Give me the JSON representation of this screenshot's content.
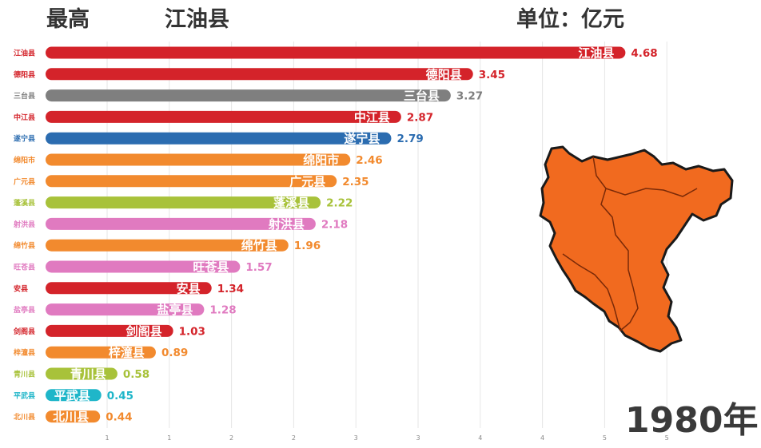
{
  "header": {
    "left_label": "最高",
    "leader": "江油县",
    "unit": "单位：亿元"
  },
  "year_label": "1980年",
  "map": {
    "fill_color": "#f16a1f",
    "stroke_color": "#1a1a1a",
    "icon": "county-map"
  },
  "chart_data": {
    "type": "bar",
    "orientation": "horizontal",
    "categories": [
      "江油县",
      "德阳县",
      "三台县",
      "中江县",
      "遂宁县",
      "绵阳市",
      "广元县",
      "蓬溪县",
      "射洪县",
      "绵竹县",
      "旺苍县",
      "安县",
      "盐亭县",
      "剑阁县",
      "梓潼县",
      "青川县",
      "平武县",
      "北川县"
    ],
    "values": [
      4.68,
      3.45,
      3.27,
      2.87,
      2.79,
      2.46,
      2.35,
      2.22,
      2.18,
      1.96,
      1.57,
      1.34,
      1.28,
      1.03,
      0.89,
      0.58,
      0.45,
      0.44
    ],
    "value_labels": [
      "4.68",
      "3.45",
      "3.27",
      "2.87",
      "2.79",
      "2.46",
      "2.35",
      "2.22",
      "2.18",
      "1.96",
      "1.57",
      "1.34",
      "1.28",
      "1.03",
      "0.89",
      "0.58",
      "0.45",
      "0.44"
    ],
    "colors": [
      "#d4232a",
      "#d4232a",
      "#7f7f7f",
      "#d4232a",
      "#2b6cb0",
      "#f28a2e",
      "#f28a2e",
      "#a8c23a",
      "#e07ac0",
      "#f28a2e",
      "#e07ac0",
      "#d4232a",
      "#e07ac0",
      "#d4232a",
      "#f28a2e",
      "#a8c23a",
      "#1fb6c9",
      "#f28a2e"
    ],
    "xticks": [
      "1",
      "1",
      "2",
      "2",
      "3",
      "3",
      "4",
      "4",
      "5",
      "5"
    ],
    "title": "",
    "xlabel": "",
    "ylabel": "",
    "grid": true
  }
}
